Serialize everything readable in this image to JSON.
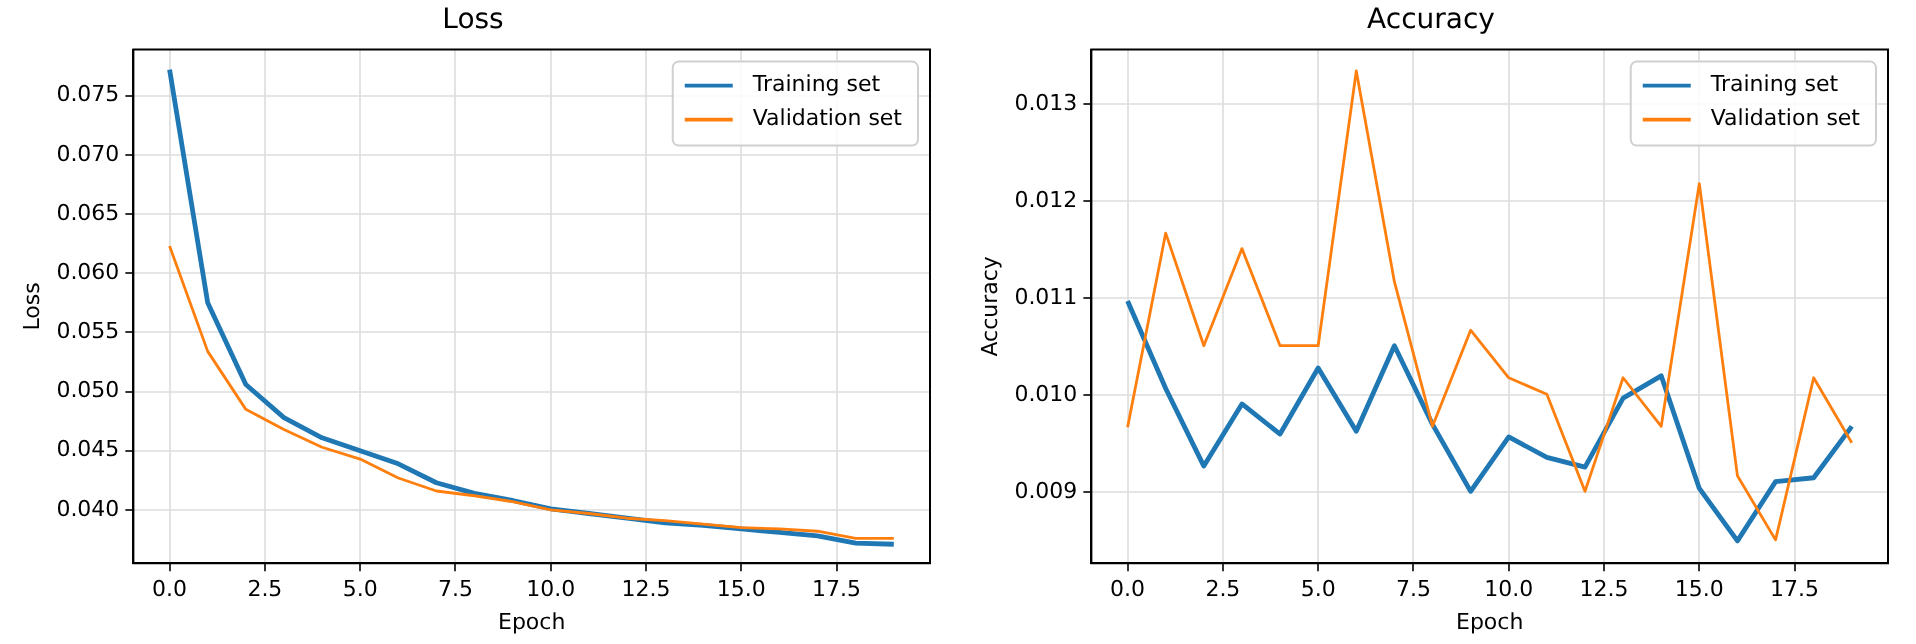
{
  "chart_data": [
    {
      "type": "line",
      "title": "Loss",
      "xlabel": "Epoch",
      "ylabel": "Loss",
      "legend": "top right",
      "grid": true,
      "line_style": "solid",
      "marker": "none",
      "x": [
        0,
        1,
        2,
        3,
        4,
        5,
        6,
        7,
        8,
        9,
        10,
        11,
        12,
        13,
        14,
        15,
        16,
        17,
        18,
        19
      ],
      "xlim": [
        -0.95,
        19.95
      ],
      "xticks": [
        {
          "value": 0,
          "label": "0.0"
        },
        {
          "value": 2.5,
          "label": "2.5"
        },
        {
          "value": 5,
          "label": "5.0"
        },
        {
          "value": 7.5,
          "label": "7.5"
        },
        {
          "value": 10,
          "label": "10.0"
        },
        {
          "value": 12.5,
          "label": "12.5"
        },
        {
          "value": 15,
          "label": "15.0"
        },
        {
          "value": 17.5,
          "label": "17.5"
        }
      ],
      "ylim": [
        0.0355,
        0.0789
      ],
      "yticks": [
        {
          "value": 0.04,
          "label": "0.040"
        },
        {
          "value": 0.045,
          "label": "0.045"
        },
        {
          "value": 0.05,
          "label": "0.050"
        },
        {
          "value": 0.055,
          "label": "0.055"
        },
        {
          "value": 0.06,
          "label": "0.060"
        },
        {
          "value": 0.065,
          "label": "0.065"
        },
        {
          "value": 0.07,
          "label": "0.070"
        },
        {
          "value": 0.075,
          "label": "0.075"
        }
      ],
      "series": [
        {
          "name": "Training set",
          "color": "#1f77b4",
          "values": [
            0.0772,
            0.0575,
            0.0506,
            0.0478,
            0.0461,
            0.045,
            0.0439,
            0.0423,
            0.0414,
            0.0408,
            0.0401,
            0.0397,
            0.0393,
            0.0389,
            0.0387,
            0.0384,
            0.0381,
            0.0378,
            0.0372,
            0.0371
          ]
        },
        {
          "name": "Validation set",
          "color": "#ff7f0e",
          "values": [
            0.0623,
            0.0534,
            0.0485,
            0.0468,
            0.0453,
            0.0443,
            0.0427,
            0.0416,
            0.0412,
            0.0407,
            0.04,
            0.0397,
            0.0393,
            0.0391,
            0.0388,
            0.0385,
            0.0384,
            0.0382,
            0.0376,
            0.0376
          ]
        }
      ]
    },
    {
      "type": "line",
      "title": "Accuracy",
      "xlabel": "Epoch",
      "ylabel": "Accuracy",
      "legend": "top right",
      "grid": true,
      "line_style": "solid",
      "marker": "none",
      "x": [
        0,
        1,
        2,
        3,
        4,
        5,
        6,
        7,
        8,
        9,
        10,
        11,
        12,
        13,
        14,
        15,
        16,
        17,
        18,
        19
      ],
      "xlim": [
        -0.95,
        19.95
      ],
      "xticks": [
        {
          "value": 0,
          "label": "0.0"
        },
        {
          "value": 2.5,
          "label": "2.5"
        },
        {
          "value": 5,
          "label": "5.0"
        },
        {
          "value": 7.5,
          "label": "7.5"
        },
        {
          "value": 10,
          "label": "10.0"
        },
        {
          "value": 12.5,
          "label": "12.5"
        },
        {
          "value": 15,
          "label": "15.0"
        },
        {
          "value": 17.5,
          "label": "17.5"
        }
      ],
      "ylim": [
        0.00827,
        0.01356
      ],
      "yticks": [
        {
          "value": 0.009,
          "label": "0.009"
        },
        {
          "value": 0.01,
          "label": "0.010"
        },
        {
          "value": 0.011,
          "label": "0.011"
        },
        {
          "value": 0.012,
          "label": "0.012"
        },
        {
          "value": 0.013,
          "label": "0.013"
        }
      ],
      "series": [
        {
          "name": "Training set",
          "color": "#1f77b4",
          "values": [
            0.01097,
            0.01007,
            0.00927,
            0.00991,
            0.0096,
            0.01028,
            0.00963,
            0.01051,
            0.0097,
            0.00901,
            0.00957,
            0.00936,
            0.00926,
            0.00997,
            0.0102,
            0.00904,
            0.0085,
            0.00911,
            0.00915,
            0.00968
          ]
        },
        {
          "name": "Validation set",
          "color": "#ff7f0e",
          "values": [
            0.00967,
            0.01167,
            0.01051,
            0.01151,
            0.01051,
            0.01051,
            0.01334,
            0.01117,
            0.00968,
            0.01067,
            0.01018,
            0.01001,
            0.00901,
            0.01018,
            0.00968,
            0.01218,
            0.00917,
            0.00851,
            0.01018,
            0.00951
          ]
        }
      ]
    }
  ]
}
